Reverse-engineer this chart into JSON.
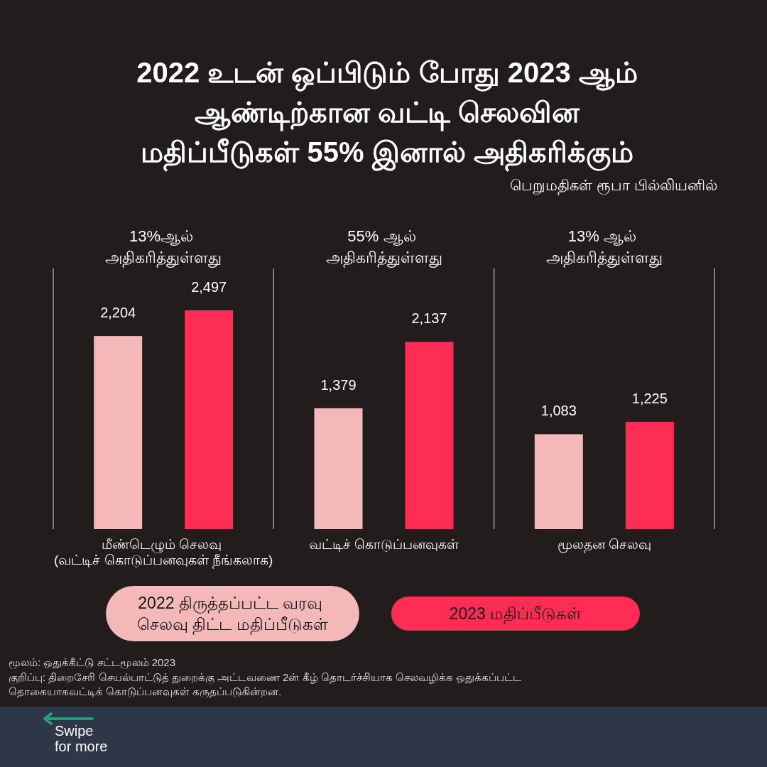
{
  "chart_data": {
    "type": "bar",
    "title": "2022 உடன் ஒப்பிடும் போது 2023 ஆம் ஆண்டிற்கான வட்டி செலவின மதிப்பீடுகள் 55% இனால் அதிகரிக்கும்",
    "subtitle": "பெறுமதிகள் ரூபா பில்லியனில்",
    "categories": [
      "மீண்டெழும் செலவு (வட்டிச் கொடுப்பனவுகள் நீங்கலாக)",
      "வட்டிச் கொடுப்பனவுகள்",
      "மூலதன செலவு"
    ],
    "series": [
      {
        "name": "2022 திருத்தப்பட்ட வரவு செலவு திட்ட மதிப்பீடுகள்",
        "color": "#f5b8b9",
        "values": [
          2204,
          1379,
          1083
        ],
        "value_labels": [
          "2,204",
          "1,379",
          "1,083"
        ]
      },
      {
        "name": "2023 மதிப்பீடுகள்",
        "color": "#fe2d55",
        "values": [
          2497,
          2137,
          1225
        ],
        "value_labels": [
          "2,497",
          "2,137",
          "1,225"
        ]
      }
    ],
    "grid": "x",
    "legend": "bottom",
    "annotations": [
      "13%ஆல் அதிகரித்துள்ளது",
      "55% ஆல் அதிகரித்துள்ளது",
      "13% ஆல் அதிகரித்துள்ளது",
      "மூலம்: ஒதுக்கீட்டு சட்டமூலம் 2023",
      "குறிப்பு: திறைசேரி செயல்பாட்டுத் துறைக்கு அட்டவணை 2ன் கீழ் தொடர்ச்சியாக செலவழிக்க ஒதுக்கப்பட்ட தொகையாகவட்டிக் கொடுப்பனவுகள் கருதப்படுகின்றன.",
      "Swipe for more"
    ]
  }
}
